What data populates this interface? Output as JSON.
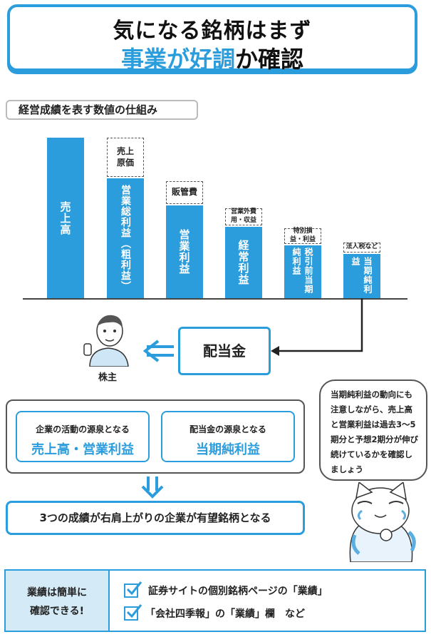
{
  "title": {
    "line1": "気になる銘柄はまず",
    "line2_highlight": "事業が好調",
    "line2_rest": "か確認"
  },
  "section_label": "経営成績を表す数値の仕組み",
  "bars": [
    {
      "label": "売上高",
      "top_label": ""
    },
    {
      "label": "営業総利益（粗利益）",
      "top_label": "売上原価"
    },
    {
      "label": "営業利益",
      "top_label": "販管費"
    },
    {
      "label": "経常利益",
      "top_label": "営業外費用・収益"
    },
    {
      "label": "税引前当期純利益",
      "top_label": "特別損益・利益"
    },
    {
      "label": "当期純利益",
      "top_label": "法人税など"
    }
  ],
  "dividend_label": "配当金",
  "shareholder_label": "株主",
  "sources": [
    {
      "caption": "企業の活動の源泉となる",
      "value": "売上高・営業利益"
    },
    {
      "caption": "配当金の源泉となる",
      "value": "当期純利益"
    }
  ],
  "result_text": "3つの成績が右肩上がりの企業が有望銘柄となる",
  "bubble_text": "当期純利益の動向にも注意しながら、売上高と営業利益は過去3～5期分と予想2期分が伸び続けているかを確認しましょう",
  "footer": {
    "left_line1": "業績は簡単に",
    "left_line2": "確認できる!",
    "items": [
      "証券サイトの個別銘柄ページの「業績」",
      "「会社四季報」の「業績」欄　など"
    ]
  },
  "colors": {
    "accent": "#2c9ddc",
    "light": "#d4eaf7"
  }
}
